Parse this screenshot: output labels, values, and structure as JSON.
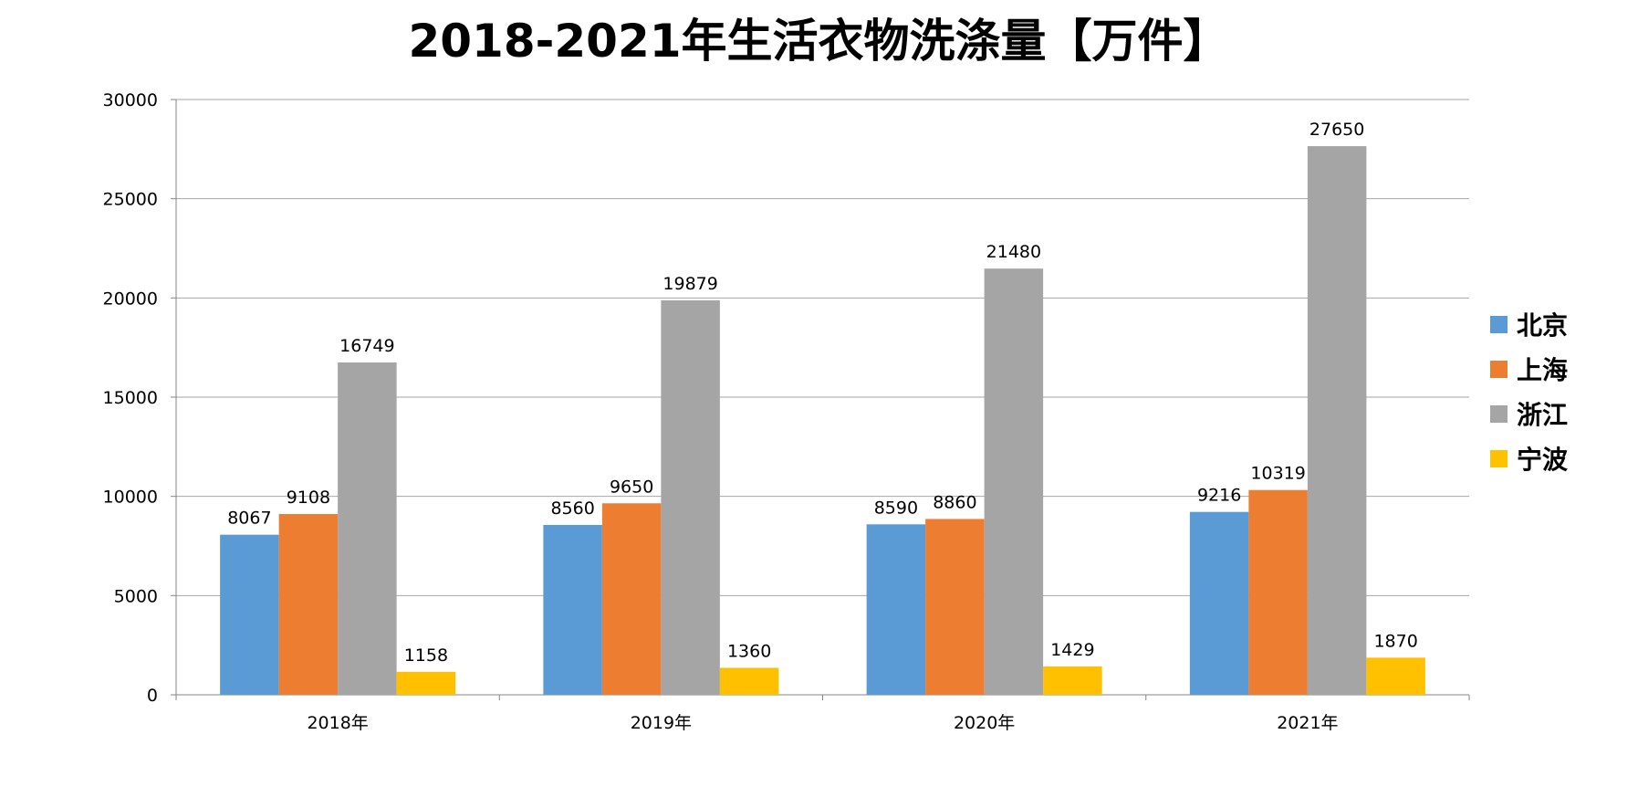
{
  "chart_data": {
    "type": "bar",
    "title": "2018-2021年生活衣物洗涤量【万件】",
    "xlabel": "",
    "ylabel": "",
    "categories": [
      "2018年",
      "2019年",
      "2020年",
      "2021年"
    ],
    "series": [
      {
        "name": "北京",
        "color": "#5B9BD5",
        "values": [
          8067,
          8560,
          8590,
          9216
        ]
      },
      {
        "name": "上海",
        "color": "#ED7D31",
        "values": [
          9108,
          9650,
          8860,
          10319
        ]
      },
      {
        "name": "浙江",
        "color": "#A5A5A5",
        "values": [
          16749,
          19879,
          21480,
          27650
        ]
      },
      {
        "name": "宁波",
        "color": "#FFC000",
        "values": [
          1158,
          1360,
          1429,
          1870
        ]
      }
    ],
    "ylim": [
      0,
      30000
    ],
    "yticks": [
      0,
      5000,
      10000,
      15000,
      20000,
      25000,
      30000
    ],
    "grid": true,
    "legend_position": "right",
    "data_labels": true
  }
}
